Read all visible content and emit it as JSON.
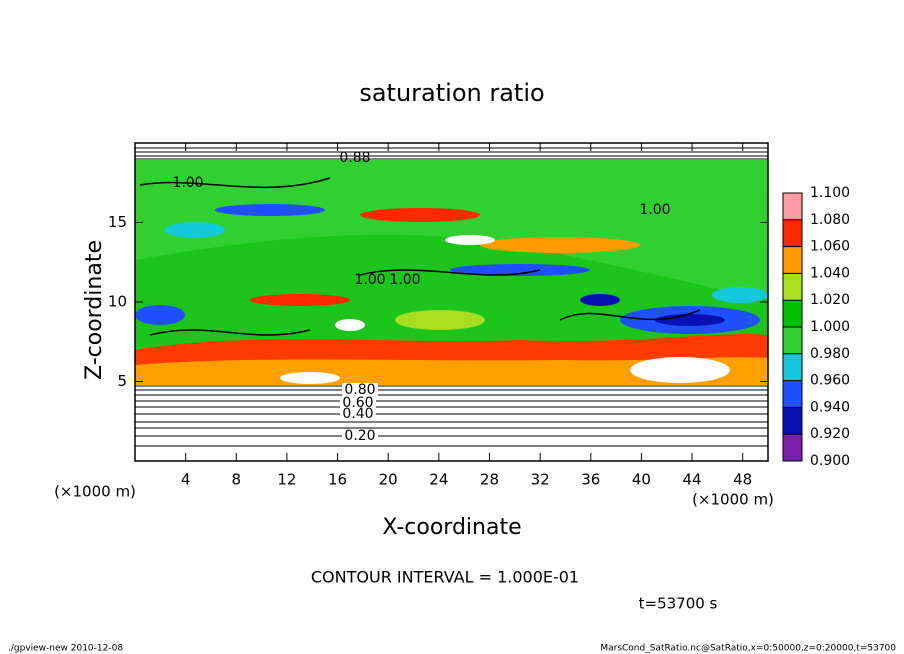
{
  "chart_data": {
    "type": "heatmap",
    "title": "saturation ratio",
    "x_label": "X-coordinate",
    "y_label": "Z-coordinate",
    "x_unit": "(×1000 m)",
    "y_unit": "(×1000 m)",
    "xlim": [
      0,
      50
    ],
    "xticks": [
      4,
      8,
      12,
      16,
      20,
      24,
      28,
      32,
      36,
      40,
      44,
      48
    ],
    "ylim": [
      0,
      20
    ],
    "yticks": [
      5,
      10,
      15
    ],
    "colorbar": {
      "levels": [
        {
          "value": 0.9,
          "label": "0.900"
        },
        {
          "value": 0.92,
          "label": "0.920"
        },
        {
          "value": 0.94,
          "label": "0.940"
        },
        {
          "value": 0.96,
          "label": "0.960"
        },
        {
          "value": 0.98,
          "label": "0.980"
        },
        {
          "value": 1.0,
          "label": "1.000"
        },
        {
          "value": 1.02,
          "label": "1.020"
        },
        {
          "value": 1.04,
          "label": "1.040"
        },
        {
          "value": 1.06,
          "label": "1.060"
        },
        {
          "value": 1.08,
          "label": "1.080"
        },
        {
          "value": 1.1,
          "label": "1.100"
        }
      ],
      "colors": [
        "#7a1fb0",
        "#0a10b4",
        "#1e50ff",
        "#14c8dc",
        "#32d232",
        "#00c000",
        "#a8e020",
        "#ff9a00",
        "#ff2a00",
        "#ff9aa0"
      ]
    },
    "contour_labels": [
      "0.88",
      "1.00",
      "1.00",
      "1.00",
      "1.00",
      "0.80",
      "0.60",
      "0.40",
      "0.20"
    ],
    "contour_interval": "CONTOUR INTERVAL = 1.000E-01",
    "time": "t=53700 s"
  },
  "footer": {
    "left": "./gpview-new   2010-12-08",
    "right": "MarsCond_SatRatio.nc@SatRatio,x=0:50000,z=0:20000,t=53700"
  }
}
